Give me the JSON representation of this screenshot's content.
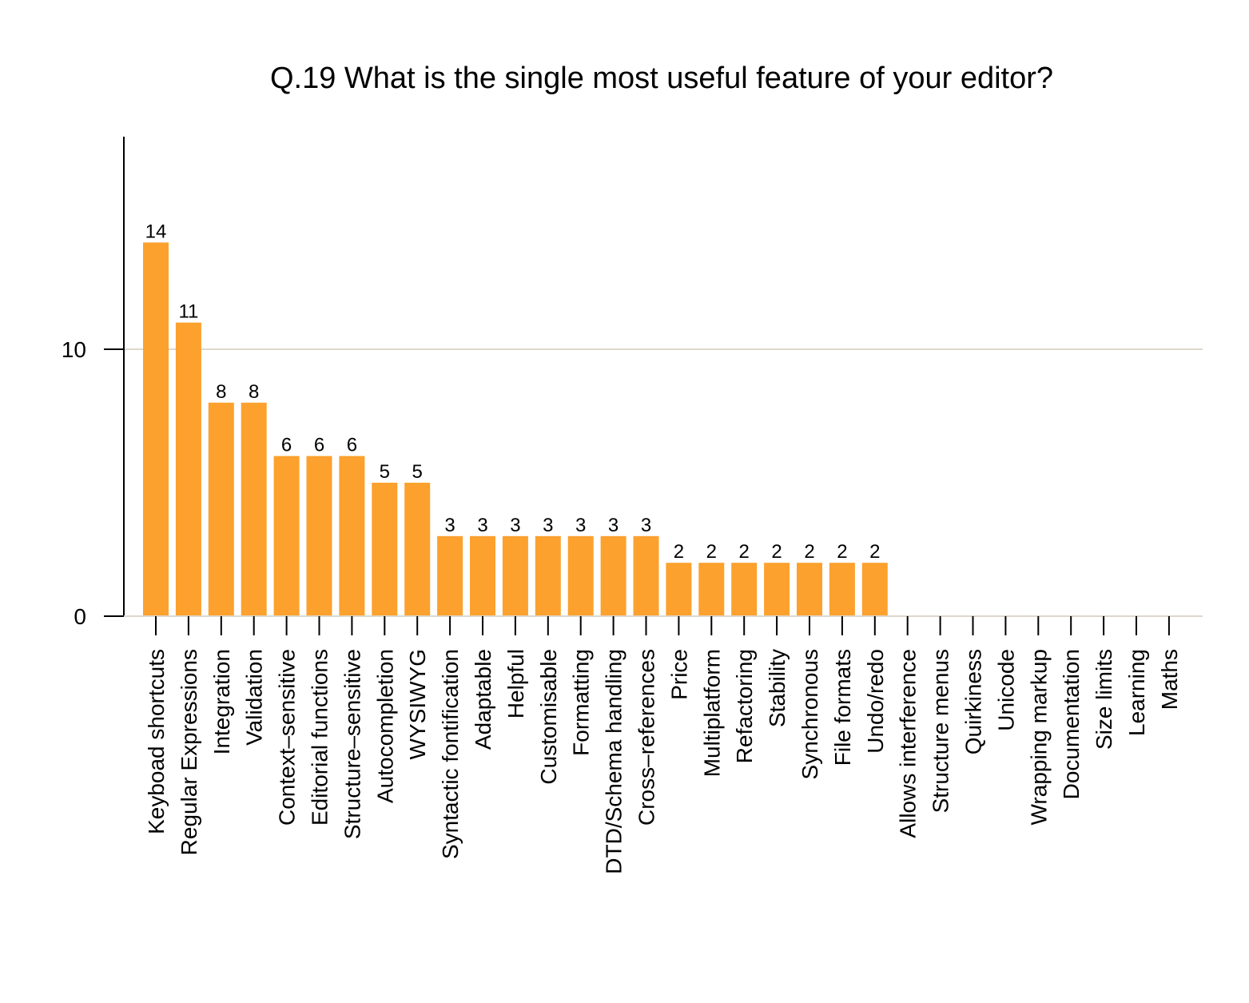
{
  "chart_data": {
    "type": "bar",
    "title": "Q.19 What is the single most useful feature of your editor?",
    "xlabel": "",
    "ylabel": "",
    "ylim": [
      0,
      18
    ],
    "yticks": [
      0,
      10
    ],
    "grid": "horizontal",
    "bar_color": "#fca12d",
    "grid_color": "#ddd8cc",
    "categories": [
      "Keyboad shortcuts",
      "Regular Expressions",
      "Integration",
      "Validation",
      "Context–sensitive",
      "Editorial functions",
      "Structure–sensitive",
      "Autocompletion",
      "WYSIWYG",
      "Syntactic fontification",
      "Adaptable",
      "Helpful",
      "Customisable",
      "Formatting",
      "DTD/Schema handling",
      "Cross–references",
      "Price",
      "Multiplatform",
      "Refactoring",
      "Stability",
      "Synchronous",
      "File formats",
      "Undo/redo",
      "Allows interference",
      "Structure menus",
      "Quirkiness",
      "Unicode",
      "Wrapping markup",
      "Documentation",
      "Size limits",
      "Learning",
      "Maths"
    ],
    "values": [
      14,
      11,
      8,
      8,
      6,
      6,
      6,
      5,
      5,
      3,
      3,
      3,
      3,
      3,
      3,
      3,
      2,
      2,
      2,
      2,
      2,
      2,
      2,
      0,
      0,
      0,
      0,
      0,
      0,
      0,
      0,
      0
    ]
  }
}
